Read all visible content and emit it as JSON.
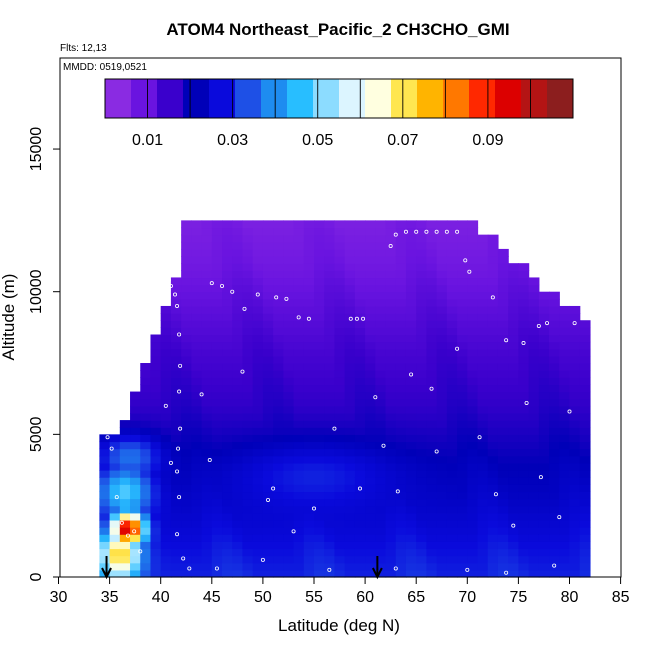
{
  "chart_data": {
    "type": "heatmap",
    "title": "ATOM4 Northeast_Pacific_2 CH3CHO_GMI",
    "subtitle_lines": [
      "Flts: 12,13",
      "MMDD: 0519,0521"
    ],
    "xlabel": "Latitude (deg N)",
    "ylabel": "Altitude (m)",
    "xlim": [
      30,
      85
    ],
    "ylim": [
      0,
      17500
    ],
    "x_ticks": [
      30,
      35,
      40,
      45,
      50,
      55,
      60,
      65,
      70,
      75,
      80,
      85
    ],
    "y_ticks": [
      0,
      5000,
      10000,
      15000
    ],
    "colorbar": {
      "range": [
        0,
        0.11
      ],
      "tick_values": [
        0.01,
        0.03,
        0.05,
        0.07,
        0.09
      ],
      "tick_labels": [
        "0.01",
        "0.03",
        "0.05",
        "0.07",
        "0.09"
      ],
      "colors": [
        "#8a2be2",
        "#6a14e0",
        "#3a00cc",
        "#0000b8",
        "#0a0adc",
        "#1e50e6",
        "#1e8cf0",
        "#28beff",
        "#8cdcff",
        "#dcf5ff",
        "#ffffe0",
        "#ffe650",
        "#ffb400",
        "#ff7800",
        "#ff2800",
        "#dc0000",
        "#b41414",
        "#8c1e1e"
      ]
    },
    "field": {
      "x_bins": [
        34.5,
        35.5,
        36.5,
        37.5,
        38.5,
        39.5,
        40.5,
        41.5,
        42.5,
        43.5,
        44.5,
        45.5,
        46.5,
        47.5,
        48.5,
        49.5,
        50.5,
        51.5,
        52.5,
        53.5,
        54.5,
        55.5,
        56.5,
        57.5,
        58.5,
        59.5,
        60.5,
        61.5,
        62.5,
        63.5,
        64.5,
        65.5,
        66.5,
        67.5,
        68.5,
        69.5,
        70.5,
        71.5,
        72.5,
        73.5,
        74.5,
        75.5,
        76.5,
        77.5,
        78.5,
        79.5,
        80.5,
        81.5
      ],
      "top_altitude": [
        5000,
        5000,
        5500,
        6500,
        7500,
        8500,
        9500,
        10500,
        12500,
        12500,
        12500,
        12500,
        12500,
        12500,
        12500,
        12500,
        12500,
        12500,
        12500,
        12500,
        12500,
        12500,
        12500,
        12500,
        12500,
        12500,
        12500,
        12500,
        12500,
        12500,
        12500,
        12500,
        12500,
        12500,
        12500,
        12500,
        12500,
        12000,
        12000,
        11500,
        11000,
        11000,
        10500,
        10000,
        10000,
        9500,
        9500,
        9000
      ],
      "bottom_altitude": 0,
      "background_profile": [
        {
          "alt": 0,
          "value": 0.028
        },
        {
          "alt": 1000,
          "value": 0.026
        },
        {
          "alt": 2500,
          "value": 0.022
        },
        {
          "alt": 4000,
          "value": 0.019
        },
        {
          "alt": 6000,
          "value": 0.014
        },
        {
          "alt": 8000,
          "value": 0.011
        },
        {
          "alt": 9500,
          "value": 0.008
        },
        {
          "alt": 11000,
          "value": 0.005
        },
        {
          "alt": 12500,
          "value": 0.003
        }
      ],
      "hotspots": [
        {
          "lat": 36.8,
          "alt": 1700,
          "value": 0.1,
          "lat_spread": 1.6,
          "alt_spread": 600
        },
        {
          "lat": 36.0,
          "alt": 800,
          "value": 0.075,
          "lat_spread": 2.0,
          "alt_spread": 900
        },
        {
          "lat": 36.5,
          "alt": 3000,
          "value": 0.048,
          "lat_spread": 2.6,
          "alt_spread": 900
        },
        {
          "lat": 37.0,
          "alt": 4200,
          "value": 0.036,
          "lat_spread": 3.0,
          "alt_spread": 800
        },
        {
          "lat": 55.0,
          "alt": 3500,
          "value": 0.028,
          "lat_spread": 8.0,
          "alt_spread": 1200
        }
      ]
    },
    "flight_track_points": [
      {
        "lat": 38.8,
        "alt": 12200
      },
      {
        "lat": 39.3,
        "alt": 12250
      },
      {
        "lat": 39.8,
        "alt": 12300
      },
      {
        "lat": 40.2,
        "alt": 12150
      },
      {
        "lat": 40.8,
        "alt": 10400
      },
      {
        "lat": 41.0,
        "alt": 10200
      },
      {
        "lat": 41.4,
        "alt": 9900
      },
      {
        "lat": 41.6,
        "alt": 9500
      },
      {
        "lat": 41.8,
        "alt": 8500
      },
      {
        "lat": 41.9,
        "alt": 7400
      },
      {
        "lat": 41.8,
        "alt": 6500
      },
      {
        "lat": 41.9,
        "alt": 5200
      },
      {
        "lat": 41.7,
        "alt": 4500
      },
      {
        "lat": 41.6,
        "alt": 3700
      },
      {
        "lat": 41.8,
        "alt": 2800
      },
      {
        "lat": 41.6,
        "alt": 1500
      },
      {
        "lat": 42.2,
        "alt": 650
      },
      {
        "lat": 42.8,
        "alt": 300
      },
      {
        "lat": 45.0,
        "alt": 10300
      },
      {
        "lat": 46.0,
        "alt": 10200
      },
      {
        "lat": 47.0,
        "alt": 10000
      },
      {
        "lat": 48.2,
        "alt": 9400
      },
      {
        "lat": 49.5,
        "alt": 9900
      },
      {
        "lat": 51.3,
        "alt": 9800
      },
      {
        "lat": 52.3,
        "alt": 9750
      },
      {
        "lat": 53.5,
        "alt": 9100
      },
      {
        "lat": 54.5,
        "alt": 9050
      },
      {
        "lat": 58.6,
        "alt": 9050
      },
      {
        "lat": 59.2,
        "alt": 9050
      },
      {
        "lat": 59.8,
        "alt": 9050
      },
      {
        "lat": 62.5,
        "alt": 11600
      },
      {
        "lat": 63.0,
        "alt": 12000
      },
      {
        "lat": 64.0,
        "alt": 12100
      },
      {
        "lat": 65.0,
        "alt": 12100
      },
      {
        "lat": 66.0,
        "alt": 12100
      },
      {
        "lat": 67.0,
        "alt": 12100
      },
      {
        "lat": 68.0,
        "alt": 12100
      },
      {
        "lat": 69.0,
        "alt": 12100
      },
      {
        "lat": 69.8,
        "alt": 11100
      },
      {
        "lat": 70.2,
        "alt": 10700
      },
      {
        "lat": 72.5,
        "alt": 9800
      },
      {
        "lat": 73.8,
        "alt": 8300
      },
      {
        "lat": 75.5,
        "alt": 8200
      },
      {
        "lat": 77.0,
        "alt": 8800
      },
      {
        "lat": 77.8,
        "alt": 8900
      },
      {
        "lat": 80.5,
        "alt": 8900
      },
      {
        "lat": 81.8,
        "alt": 9500
      },
      {
        "lat": 34.8,
        "alt": 4900
      },
      {
        "lat": 35.2,
        "alt": 4500
      },
      {
        "lat": 35.7,
        "alt": 2800
      },
      {
        "lat": 36.2,
        "alt": 1900
      },
      {
        "lat": 36.8,
        "alt": 1450
      },
      {
        "lat": 37.4,
        "alt": 1600
      },
      {
        "lat": 38.0,
        "alt": 900
      },
      {
        "lat": 38.8,
        "alt": 9500
      },
      {
        "lat": 38.2,
        "alt": 8500
      },
      {
        "lat": 40.5,
        "alt": 6000
      },
      {
        "lat": 41.0,
        "alt": 4000
      },
      {
        "lat": 44.0,
        "alt": 6400
      },
      {
        "lat": 44.8,
        "alt": 4100
      },
      {
        "lat": 48.0,
        "alt": 7200
      },
      {
        "lat": 50.5,
        "alt": 2700
      },
      {
        "lat": 51.0,
        "alt": 3100
      },
      {
        "lat": 53.0,
        "alt": 1600
      },
      {
        "lat": 55.0,
        "alt": 2400
      },
      {
        "lat": 57.0,
        "alt": 5200
      },
      {
        "lat": 59.5,
        "alt": 3100
      },
      {
        "lat": 61.0,
        "alt": 6300
      },
      {
        "lat": 61.8,
        "alt": 4600
      },
      {
        "lat": 63.2,
        "alt": 3000
      },
      {
        "lat": 64.5,
        "alt": 7100
      },
      {
        "lat": 66.5,
        "alt": 6600
      },
      {
        "lat": 67.0,
        "alt": 4400
      },
      {
        "lat": 69.0,
        "alt": 8000
      },
      {
        "lat": 71.2,
        "alt": 4900
      },
      {
        "lat": 72.8,
        "alt": 2900
      },
      {
        "lat": 74.5,
        "alt": 1800
      },
      {
        "lat": 75.8,
        "alt": 6100
      },
      {
        "lat": 77.2,
        "alt": 3500
      },
      {
        "lat": 79.0,
        "alt": 2100
      },
      {
        "lat": 80.0,
        "alt": 5800
      },
      {
        "lat": 45.5,
        "alt": 300
      },
      {
        "lat": 50.0,
        "alt": 600
      },
      {
        "lat": 56.5,
        "alt": 250
      },
      {
        "lat": 63.0,
        "alt": 300
      },
      {
        "lat": 70.0,
        "alt": 250
      },
      {
        "lat": 73.8,
        "alt": 150
      },
      {
        "lat": 78.5,
        "alt": 400
      }
    ],
    "arrows": [
      {
        "lat": 34.7
      },
      {
        "lat": 61.2
      }
    ],
    "grid": false,
    "legend": "colorbar at top inside plot area"
  }
}
